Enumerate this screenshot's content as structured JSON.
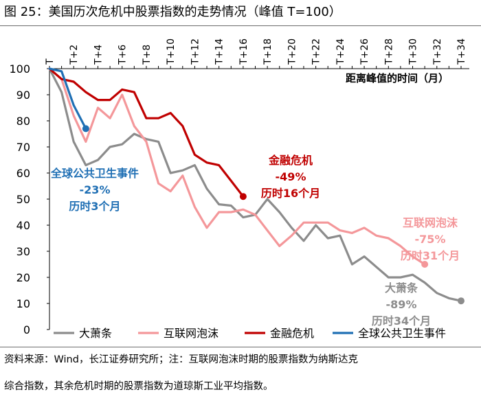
{
  "figure": {
    "title": "图 25：美国历次危机中股票指数的走势情况（峰值 T=100）",
    "source_line1": "资料来源：Wind，长江证券研究所；注：互联网泡沫时期的股票指数为纳斯达克",
    "source_line2": "综合指数，其余危机时期的股票指数为道琼斯工业平均指数。"
  },
  "chart_data": {
    "type": "line",
    "title": "美国历次危机中股票指数的走势情况（峰值 T=100）",
    "xlabel": "距离峰值的时间（月）",
    "ylabel": "",
    "x_ticks": [
      "T",
      "T+2",
      "T+4",
      "T+6",
      "T+8",
      "T+10",
      "T+12",
      "T+14",
      "T+16",
      "T+18",
      "T+20",
      "T+22",
      "T+24",
      "T+26",
      "T+28",
      "T+30",
      "T+32",
      "T+34"
    ],
    "xlim": [
      0,
      35
    ],
    "ylim": [
      0,
      100
    ],
    "y_ticks": [
      0,
      10,
      20,
      30,
      40,
      50,
      60,
      70,
      80,
      90,
      100
    ],
    "colors": {
      "great_depression": "#8c8c8c",
      "dotcom": "#f4979a",
      "financial": "#c00000",
      "covid": "#1f6fb4"
    },
    "series": [
      {
        "key": "great_depression",
        "name": "大萧条",
        "values": [
          100,
          91,
          72,
          63,
          65,
          70,
          71,
          75,
          73,
          72,
          60,
          61,
          63,
          54,
          48,
          47.5,
          43,
          44,
          50,
          45,
          39,
          34,
          40,
          35,
          36,
          25,
          28,
          24,
          20,
          20,
          21,
          18,
          14,
          12,
          11
        ]
      },
      {
        "key": "dotcom",
        "name": "互联网泡沫",
        "values": [
          100,
          96,
          82,
          72,
          85,
          81,
          90,
          78,
          72,
          56,
          53,
          59,
          47,
          39,
          45,
          45,
          46,
          44,
          38,
          32,
          36,
          41,
          41,
          41,
          38,
          37,
          39,
          36,
          35,
          32,
          28,
          25
        ]
      },
      {
        "key": "financial",
        "name": "金融危机",
        "values": [
          100,
          96,
          95,
          91,
          88,
          88,
          92,
          91,
          81,
          81,
          83,
          78,
          67,
          64,
          63,
          57,
          51
        ]
      },
      {
        "key": "covid",
        "name": "全球公共卫生事件",
        "values": [
          100,
          99,
          86,
          77
        ]
      }
    ],
    "annotations": [
      {
        "series": "covid",
        "lines": [
          "全球公共卫生事件",
          "-23%",
          "历时3个月"
        ]
      },
      {
        "series": "financial",
        "lines": [
          "金融危机",
          "-49%",
          "历时16个月"
        ]
      },
      {
        "series": "dotcom",
        "lines": [
          "互联网泡沫",
          "-75%",
          "历时31个月"
        ]
      },
      {
        "series": "great_depression",
        "lines": [
          "大萧条",
          "-89%",
          "历时34个月"
        ]
      }
    ],
    "legend": {
      "position": "bottom",
      "entries": [
        "大萧条",
        "互联网泡沫",
        "金融危机",
        "全球公共卫生事件"
      ]
    }
  }
}
